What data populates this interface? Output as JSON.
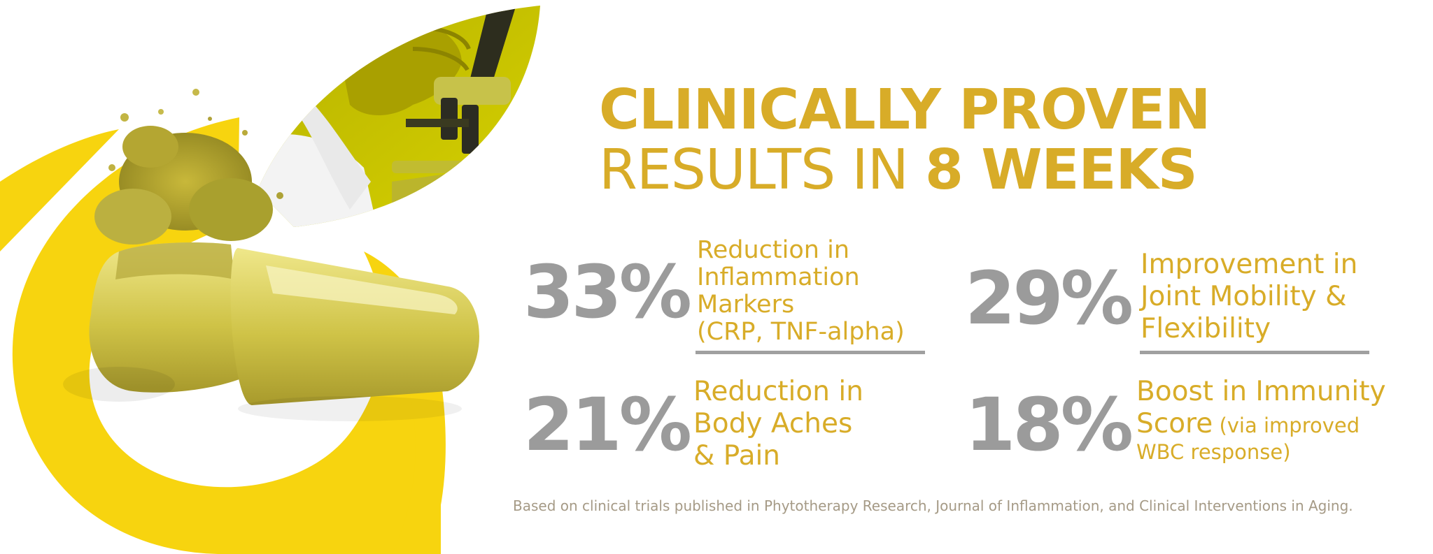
{
  "headline": {
    "line1": "CLINICALLY PROVEN",
    "line2_light": "RESULTS IN ",
    "line2_bold": "8 WEEKS"
  },
  "stats": [
    {
      "value": "33%",
      "lines": [
        "Reduction in",
        "Inflammation",
        "Markers",
        "(CRP, TNF-alpha)"
      ]
    },
    {
      "value": "29%",
      "lines": [
        "Improvement in",
        "Joint Mobility &",
        "Flexibility"
      ]
    },
    {
      "value": "21%",
      "lines": [
        "Reduction in",
        "Body Aches",
        "& Pain"
      ]
    },
    {
      "value": "18%",
      "lines": [
        "Boost in Immunity",
        "Score",
        " (via improved",
        "WBC response)"
      ]
    }
  ],
  "footnote": "Based on clinical trials published in Phytotherapy Research, Journal of Inflammation, and Clinical Interventions in Aging.",
  "colors": {
    "gold": "#d8ac28",
    "yellow": "#f7d40f",
    "gray": "#9b9b9b"
  },
  "icons": [
    "yellow-arc-graphic",
    "lab-microscope-leaf-image",
    "open-capsule-image"
  ]
}
